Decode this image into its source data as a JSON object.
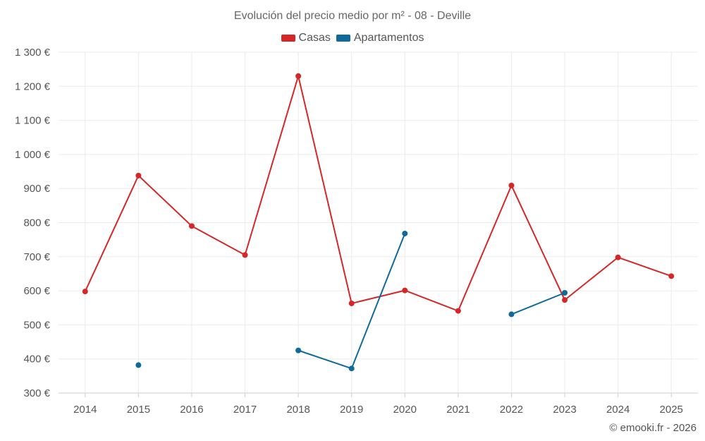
{
  "chart_data": {
    "type": "line",
    "title": "Evolución del precio medio por m² - 08 - Deville",
    "categories": [
      "2014",
      "2015",
      "2016",
      "2017",
      "2018",
      "2019",
      "2020",
      "2021",
      "2022",
      "2023",
      "2024",
      "2025"
    ],
    "y_ticks": [
      {
        "value": 300,
        "label": "300 €"
      },
      {
        "value": 400,
        "label": "400 €"
      },
      {
        "value": 500,
        "label": "500 €"
      },
      {
        "value": 600,
        "label": "600 €"
      },
      {
        "value": 700,
        "label": "700 €"
      },
      {
        "value": 800,
        "label": "800 €"
      },
      {
        "value": 900,
        "label": "900 €"
      },
      {
        "value": 1000,
        "label": "1 000 €"
      },
      {
        "value": 1100,
        "label": "1 100 €"
      },
      {
        "value": 1200,
        "label": "1 200 €"
      },
      {
        "value": 1300,
        "label": "1 300 €"
      }
    ],
    "ylim": [
      300,
      1300
    ],
    "grid": true,
    "legend_position": "top-center",
    "series": [
      {
        "name": "Casas",
        "color": "#d62728",
        "values": [
          598,
          938,
          790,
          705,
          1230,
          563,
          601,
          541,
          909,
          573,
          698,
          643
        ]
      },
      {
        "name": "Apartamentos",
        "color": "#0f6a9b",
        "values": [
          null,
          382,
          null,
          null,
          425,
          372,
          768,
          null,
          531,
          594,
          null,
          null
        ]
      }
    ]
  },
  "credit": "© emooki.fr - 2026"
}
